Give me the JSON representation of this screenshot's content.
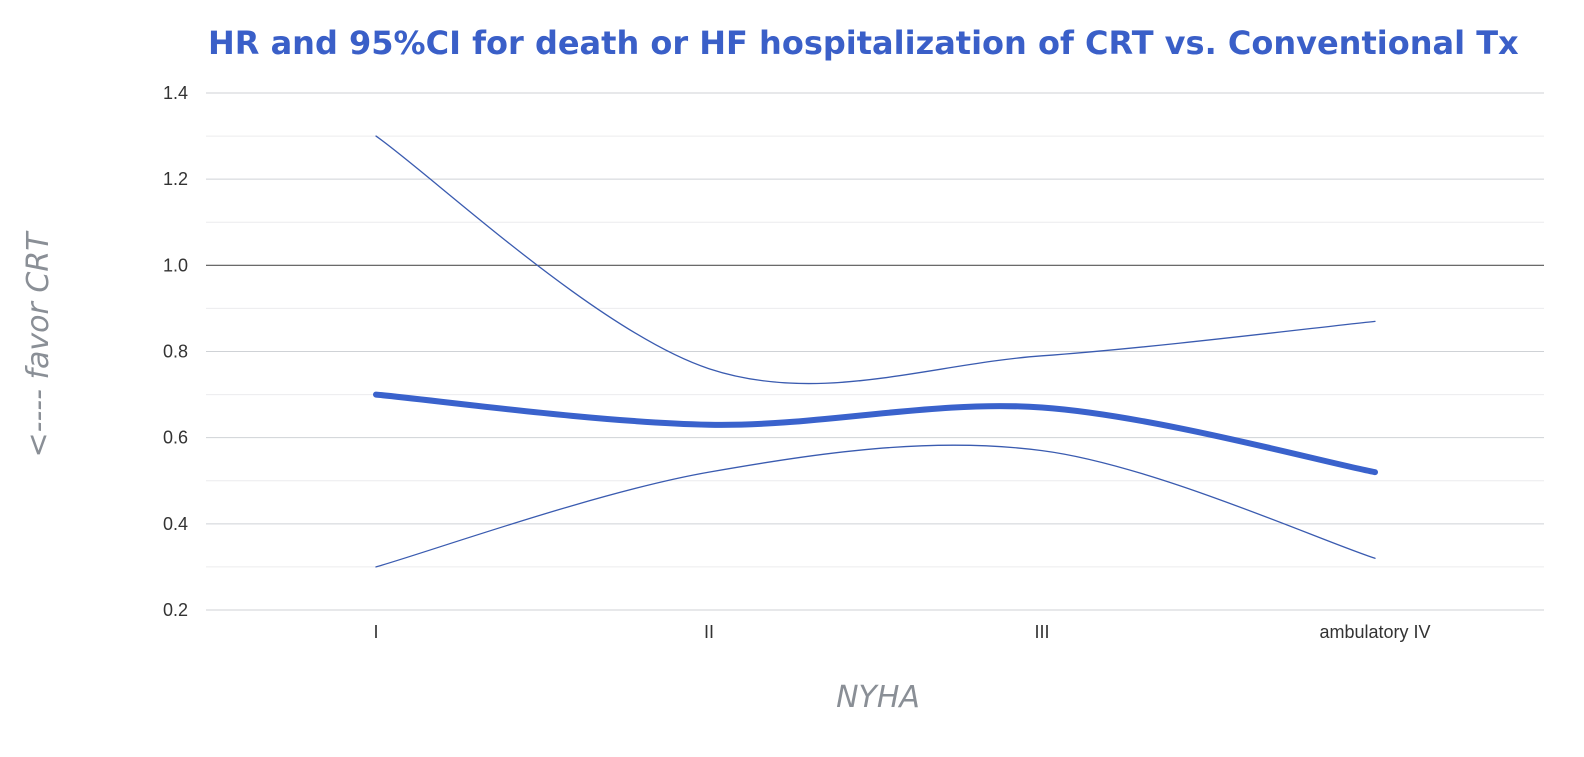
{
  "chart_data": {
    "type": "line",
    "title": "HR and 95%CI for death or HF hospitalization of CRT vs. Conventional Tx",
    "xlabel": "NYHA",
    "ylabel": "<---- favor CRT",
    "categories": [
      "I",
      "II",
      "III",
      "ambulatory IV"
    ],
    "ylim": [
      0.2,
      1.4
    ],
    "yticks": [
      0.2,
      0.4,
      0.6,
      0.8,
      1.0,
      1.2,
      1.4
    ],
    "ytick_labels": [
      "0.2",
      "0.4",
      "0.6",
      "0.8",
      "1.0",
      "1.2",
      "1.4"
    ],
    "reference_line": 1.0,
    "grid": true,
    "legend": "none",
    "smooth": true,
    "series": [
      {
        "values": [
          0.7,
          0.63,
          0.67,
          0.52
        ],
        "color": "#3a62cc",
        "role": "hr"
      },
      {
        "values": [
          1.3,
          0.76,
          0.79,
          0.87
        ],
        "color": "#3a5bb0",
        "role": "upper"
      },
      {
        "values": [
          0.3,
          0.52,
          0.57,
          0.32
        ],
        "color": "#3a5bb0",
        "role": "lower"
      }
    ]
  }
}
